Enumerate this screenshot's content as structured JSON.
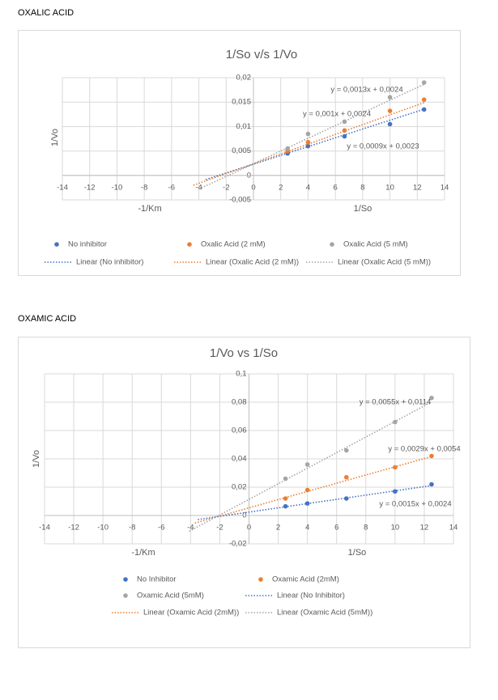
{
  "headings": [
    "OXALIC ACID",
    "OXAMIC ACID"
  ],
  "chart_data": [
    {
      "type": "scatter",
      "title": "1/So v/s 1/Vo",
      "y_label": "1/Vo",
      "x_label_left": "-1/Km",
      "x_label": "1/So",
      "x": [
        2.5,
        4,
        6.67,
        10,
        12.5
      ],
      "xlim": [
        -14,
        14
      ],
      "xticks": [
        -14,
        -12,
        -10,
        -8,
        -6,
        -4,
        -2,
        0,
        2,
        4,
        6,
        8,
        10,
        12,
        14
      ],
      "ylim": [
        -0.005,
        0.02
      ],
      "yticks": [
        {
          "value": -0.005,
          "label": "-0,005"
        },
        0,
        {
          "value": 0.005,
          "label": "0,005"
        },
        {
          "value": 0.01,
          "label": "0,01"
        },
        {
          "value": 0.015,
          "label": "0,015"
        },
        {
          "value": 0.02,
          "label": "0,02"
        }
      ],
      "grid": true,
      "series": [
        {
          "name": "No inhibitor",
          "color": "#4472c4",
          "values": [
            0.0045,
            0.006,
            0.008,
            0.0105,
            0.0135
          ],
          "trendline": {
            "name": "Linear (No inhibitor)",
            "label": "y = 0,0009x + 0,0023",
            "slope": 0.0009,
            "intercept": 0.0023,
            "x_from": -3.5,
            "x_to": 12.5
          }
        },
        {
          "name": "Oxalic Acid (2 mM)",
          "color": "#ed7d31",
          "values": [
            0.005,
            0.0068,
            0.0092,
            0.0132,
            0.0155
          ],
          "trendline": {
            "name": "Linear (Oxalic Acid (2 mM))",
            "label": "y = 0,001x + 0,0024",
            "slope": 0.001,
            "intercept": 0.0024,
            "x_from": -4.4,
            "x_to": 12.5
          }
        },
        {
          "name": "Oxalic Acid (5 mM)",
          "color": "#a5a5a5",
          "values": [
            0.0055,
            0.0085,
            0.011,
            0.016,
            0.019
          ],
          "trendline": {
            "name": "Linear (Oxalic Acid (5 mM))",
            "label": "y = 0,0013x + 0,0024",
            "slope": 0.0013,
            "intercept": 0.0024,
            "x_from": -4.0,
            "x_to": 12.5
          }
        }
      ]
    },
    {
      "type": "scatter",
      "title": "1/Vo vs 1/So",
      "y_label": "1/Vo",
      "x_label_left": "-1/Km",
      "x_label": "1/So",
      "x": [
        2.5,
        4,
        6.67,
        10,
        12.5
      ],
      "xlim": [
        -14,
        14
      ],
      "xticks": [
        -14,
        -12,
        -10,
        -8,
        -6,
        -4,
        -2,
        0,
        2,
        4,
        6,
        8,
        10,
        12,
        14
      ],
      "ylim": [
        -0.02,
        0.1
      ],
      "yticks": [
        {
          "value": -0.02,
          "label": "-0,02"
        },
        0,
        {
          "value": 0.02,
          "label": "0,02"
        },
        {
          "value": 0.04,
          "label": "0,04"
        },
        {
          "value": 0.06,
          "label": "0,06"
        },
        {
          "value": 0.08,
          "label": "0,08"
        },
        {
          "value": 0.1,
          "label": "0,1"
        }
      ],
      "grid": true,
      "series": [
        {
          "name": "No Inhibitor",
          "color": "#4472c4",
          "values": [
            0.0065,
            0.0085,
            0.012,
            0.017,
            0.022
          ],
          "trendline": {
            "name": "Linear (No Inhibitor)",
            "label": "y = 0,0015x + 0,0024",
            "slope": 0.0015,
            "intercept": 0.0024,
            "x_from": -3.5,
            "x_to": 12.5
          }
        },
        {
          "name": "Oxamic Acid (2mM)",
          "color": "#ed7d31",
          "values": [
            0.012,
            0.018,
            0.027,
            0.034,
            0.042
          ],
          "trendline": {
            "name": "Linear (Oxamic Acid (2mM))",
            "label": "y = 0,0029x + 0,0054",
            "slope": 0.0029,
            "intercept": 0.0054,
            "x_from": -3.7,
            "x_to": 12.5
          }
        },
        {
          "name": "Oxamic Acid (5mM)",
          "color": "#a5a5a5",
          "values": [
            0.026,
            0.036,
            0.046,
            0.066,
            0.083
          ],
          "trendline": {
            "name": "Linear (Oxamic Acid (5mM))",
            "label": "y = 0,0055x + 0,0114",
            "slope": 0.0055,
            "intercept": 0.0114,
            "x_from": -4.1,
            "x_to": 12.5
          }
        }
      ]
    }
  ]
}
